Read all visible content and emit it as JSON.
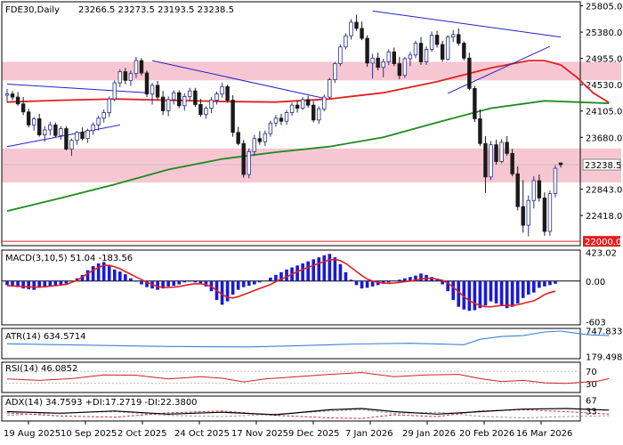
{
  "chart_data": {
    "type": "candlestick",
    "symbol_header": "FDE30,Daily",
    "ohlc_header": "23266.5 23273.5 23193.5 23238.5",
    "last_price_label": "23238.5",
    "marker_price_label": "22000.0",
    "price_axis": {
      "ylim": [
        21930,
        25870
      ],
      "ticks": [
        "25805.0",
        "25380.0",
        "24955.0",
        "24530.0",
        "24105.0",
        "23680.0",
        "22843.0",
        "22418.0"
      ]
    },
    "date_labels": [
      "19 Aug 2025",
      "10 Sep 2025",
      "2 Oct 2025",
      "24 Oct 2025",
      "17 Nov 2025",
      "9 Dec 2025",
      "7 Jan 2026",
      "29 Jan 2026",
      "20 Feb 2026",
      "16 Mar 2026"
    ],
    "resistance_zones": [
      [
        24600,
        24900
      ],
      [
        22950,
        23500
      ]
    ],
    "candles_ohlc": [
      [
        24360,
        24460,
        24240,
        24380
      ],
      [
        24380,
        24430,
        24280,
        24330
      ],
      [
        24330,
        24410,
        24190,
        24220
      ],
      [
        24220,
        24330,
        24040,
        24090
      ],
      [
        24090,
        24140,
        23840,
        23880
      ],
      [
        23880,
        24010,
        23790,
        23980
      ],
      [
        23980,
        24060,
        23690,
        23720
      ],
      [
        23720,
        23860,
        23610,
        23800
      ],
      [
        23800,
        23930,
        23710,
        23880
      ],
      [
        23880,
        23920,
        23680,
        23710
      ],
      [
        23710,
        23860,
        23640,
        23820
      ],
      [
        23820,
        23860,
        23470,
        23490
      ],
      [
        23490,
        23660,
        23380,
        23630
      ],
      [
        23630,
        23780,
        23560,
        23760
      ],
      [
        23760,
        23840,
        23630,
        23660
      ],
      [
        23660,
        23820,
        23590,
        23790
      ],
      [
        23790,
        23920,
        23720,
        23880
      ],
      [
        23880,
        24030,
        23790,
        23990
      ],
      [
        23990,
        24130,
        23920,
        24080
      ],
      [
        24080,
        24340,
        24010,
        24300
      ],
      [
        24300,
        24600,
        24260,
        24560
      ],
      [
        24560,
        24780,
        24490,
        24740
      ],
      [
        24740,
        24800,
        24540,
        24600
      ],
      [
        24600,
        24760,
        24510,
        24710
      ],
      [
        24710,
        24980,
        24640,
        24920
      ],
      [
        24920,
        24960,
        24680,
        24720
      ],
      [
        24720,
        24760,
        24330,
        24380
      ],
      [
        24380,
        24560,
        24210,
        24520
      ],
      [
        24520,
        24590,
        24290,
        24330
      ],
      [
        24330,
        24430,
        24040,
        24110
      ],
      [
        24110,
        24340,
        24020,
        24290
      ],
      [
        24290,
        24440,
        24210,
        24400
      ],
      [
        24400,
        24440,
        24150,
        24190
      ],
      [
        24190,
        24390,
        24110,
        24340
      ],
      [
        24340,
        24480,
        24280,
        24430
      ],
      [
        24430,
        24480,
        24170,
        24210
      ],
      [
        24210,
        24300,
        24010,
        24050
      ],
      [
        24050,
        24180,
        23980,
        24150
      ],
      [
        24150,
        24330,
        24070,
        24280
      ],
      [
        24280,
        24420,
        24210,
        24380
      ],
      [
        24380,
        24560,
        24320,
        24500
      ],
      [
        24500,
        24530,
        24240,
        24280
      ],
      [
        24280,
        24360,
        23690,
        23760
      ],
      [
        23760,
        23850,
        23550,
        23580
      ],
      [
        23580,
        23640,
        23030,
        23080
      ],
      [
        23080,
        23500,
        23020,
        23450
      ],
      [
        23450,
        23720,
        23380,
        23660
      ],
      [
        23660,
        23780,
        23560,
        23610
      ],
      [
        23610,
        23790,
        23540,
        23740
      ],
      [
        23740,
        23950,
        23690,
        23910
      ],
      [
        23910,
        24040,
        23850,
        23990
      ],
      [
        23990,
        24060,
        23880,
        23940
      ],
      [
        23940,
        24120,
        23880,
        24080
      ],
      [
        24080,
        24240,
        24030,
        24200
      ],
      [
        24200,
        24280,
        24080,
        24150
      ],
      [
        24150,
        24330,
        24120,
        24290
      ],
      [
        24290,
        24350,
        24160,
        24200
      ],
      [
        24200,
        24270,
        23920,
        23960
      ],
      [
        23960,
        24180,
        23900,
        24140
      ],
      [
        24140,
        24370,
        24100,
        24330
      ],
      [
        24330,
        24640,
        24300,
        24610
      ],
      [
        24610,
        24900,
        24560,
        24870
      ],
      [
        24870,
        25180,
        24830,
        25140
      ],
      [
        25140,
        25360,
        25100,
        25320
      ],
      [
        25320,
        25590,
        25260,
        25540
      ],
      [
        25540,
        25660,
        25400,
        25440
      ],
      [
        25440,
        25550,
        25250,
        25280
      ],
      [
        25280,
        25330,
        24820,
        24880
      ],
      [
        24880,
        25030,
        24630,
        24960
      ],
      [
        24960,
        25050,
        24760,
        24810
      ],
      [
        24810,
        24950,
        24650,
        24900
      ],
      [
        24900,
        25100,
        24850,
        25060
      ],
      [
        25060,
        25130,
        24830,
        24870
      ],
      [
        24870,
        24980,
        24620,
        24680
      ],
      [
        24680,
        24980,
        24640,
        24950
      ],
      [
        24950,
        25060,
        24830,
        25010
      ],
      [
        25010,
        25240,
        24960,
        25200
      ],
      [
        25200,
        25300,
        24850,
        24900
      ],
      [
        24900,
        25150,
        24850,
        25100
      ],
      [
        25100,
        25390,
        25060,
        25330
      ],
      [
        25330,
        25400,
        25130,
        25180
      ],
      [
        25180,
        25240,
        24900,
        24940
      ],
      [
        24940,
        25330,
        24920,
        25300
      ],
      [
        25300,
        25410,
        25220,
        25340
      ],
      [
        25340,
        25440,
        25160,
        25200
      ],
      [
        25200,
        25230,
        24920,
        24960
      ],
      [
        24960,
        25050,
        24440,
        24470
      ],
      [
        24470,
        24510,
        23930,
        23980
      ],
      [
        23980,
        24130,
        23540,
        23580
      ],
      [
        23580,
        23700,
        22780,
        23040
      ],
      [
        23040,
        23620,
        22990,
        23560
      ],
      [
        23560,
        23640,
        23240,
        23290
      ],
      [
        23290,
        23650,
        23260,
        23600
      ],
      [
        23600,
        23700,
        23380,
        23420
      ],
      [
        23420,
        23490,
        23050,
        23090
      ],
      [
        23090,
        23210,
        22500,
        22560
      ],
      [
        22560,
        22990,
        22140,
        22260
      ],
      [
        22260,
        22740,
        22080,
        22660
      ],
      [
        22660,
        23050,
        22530,
        22980
      ],
      [
        22980,
        23080,
        22640,
        22700
      ],
      [
        22700,
        22790,
        22090,
        22160
      ],
      [
        22160,
        22820,
        22090,
        22770
      ],
      [
        22770,
        23230,
        22710,
        23180
      ],
      [
        23266.5,
        23273.5,
        23193.5,
        23238.5
      ]
    ],
    "ma_red": [
      [
        0,
        24250
      ],
      [
        10,
        24280
      ],
      [
        20,
        24300
      ],
      [
        30,
        24280
      ],
      [
        40,
        24260
      ],
      [
        50,
        24250
      ],
      [
        60,
        24300
      ],
      [
        70,
        24400
      ],
      [
        80,
        24580
      ],
      [
        90,
        24800
      ],
      [
        97,
        24920
      ],
      [
        100,
        24920
      ],
      [
        103,
        24850
      ],
      [
        106,
        24650
      ],
      [
        109,
        24400
      ],
      [
        112,
        24240
      ]
    ],
    "ma_green": [
      [
        0,
        22490
      ],
      [
        10,
        22700
      ],
      [
        20,
        22920
      ],
      [
        30,
        23160
      ],
      [
        40,
        23330
      ],
      [
        50,
        23440
      ],
      [
        60,
        23530
      ],
      [
        70,
        23680
      ],
      [
        80,
        23920
      ],
      [
        90,
        24150
      ],
      [
        100,
        24270
      ],
      [
        112,
        24230
      ]
    ],
    "trendlines": [
      [
        [
          0,
          24540
        ],
        [
          26,
          24400
        ]
      ],
      [
        [
          0,
          23530
        ],
        [
          21,
          23880
        ]
      ],
      [
        [
          27,
          24920
        ],
        [
          59,
          24310
        ]
      ],
      [
        [
          68,
          25720
        ],
        [
          103,
          25300
        ]
      ],
      [
        [
          82,
          24390
        ],
        [
          101,
          25150
        ]
      ]
    ],
    "macd": {
      "label": "MACD(3,10,5) 51.04 -183.56",
      "ticks": [
        "423.02",
        "0.00",
        "-603"
      ],
      "ylim": [
        -620,
        430
      ],
      "histogram": [
        -60,
        -80,
        -90,
        -110,
        -120,
        -130,
        -100,
        -95,
        -80,
        -75,
        -60,
        -40,
        0,
        40,
        90,
        160,
        220,
        260,
        280,
        230,
        170,
        140,
        100,
        40,
        -10,
        -50,
        -90,
        -110,
        -130,
        -110,
        -80,
        -70,
        -50,
        -20,
        -10,
        -20,
        -40,
        -80,
        -150,
        -280,
        -350,
        -300,
        -200,
        -130,
        -90,
        -70,
        -50,
        -20,
        0,
        50,
        90,
        130,
        170,
        200,
        230,
        260,
        290,
        320,
        350,
        380,
        400,
        350,
        250,
        130,
        20,
        -60,
        -110,
        -100,
        -80,
        -60,
        -40,
        -20,
        0,
        20,
        40,
        60,
        80,
        110,
        90,
        60,
        20,
        -50,
        -150,
        -280,
        -380,
        -420,
        -440,
        -430,
        -400,
        -360,
        -300,
        -330,
        -370,
        -400,
        -380,
        -330,
        -250,
        -200,
        -170,
        -100,
        -80,
        -60,
        -40
      ],
      "signal": [
        -70,
        -70,
        -75,
        -80,
        -85,
        -90,
        -88,
        -84,
        -75,
        -68,
        -60,
        -50,
        -20,
        10,
        60,
        110,
        160,
        200,
        230,
        230,
        210,
        180,
        140,
        100,
        60,
        20,
        -20,
        -50,
        -80,
        -95,
        -95,
        -90,
        -80,
        -65,
        -50,
        -40,
        -40,
        -55,
        -80,
        -140,
        -200,
        -240,
        -250,
        -230,
        -200,
        -170,
        -140,
        -110,
        -80,
        -50,
        -10,
        30,
        60,
        100,
        140,
        170,
        200,
        230,
        260,
        290,
        310,
        320,
        300,
        260,
        200,
        140,
        80,
        30,
        0,
        -20,
        -30,
        -35,
        -30,
        -20,
        -10,
        0,
        15,
        30,
        40,
        40,
        30,
        10,
        -30,
        -90,
        -160,
        -230,
        -290,
        -330,
        -360,
        -380,
        -380,
        -370,
        -360,
        -360,
        -360,
        -350,
        -330,
        -310,
        -290,
        -250,
        -200,
        -170,
        -150
      ]
    },
    "atr": {
      "label": "ATR(14) 634.5714",
      "ticks": [
        "747.8339",
        "179.4985"
      ],
      "ylim": [
        170,
        760
      ],
      "points": [
        [
          0,
          460
        ],
        [
          15,
          430
        ],
        [
          30,
          400
        ],
        [
          45,
          390
        ],
        [
          55,
          420
        ],
        [
          65,
          455
        ],
        [
          75,
          470
        ],
        [
          85,
          440
        ],
        [
          88,
          560
        ],
        [
          92,
          620
        ],
        [
          96,
          640
        ],
        [
          100,
          720
        ],
        [
          103,
          740
        ],
        [
          108,
          660
        ],
        [
          112,
          640
        ]
      ]
    },
    "rsi": {
      "label": "RSI(14) 46.0852",
      "ticks": [
        "70",
        "30"
      ],
      "ylim": [
        0,
        100
      ],
      "points": [
        [
          0,
          45
        ],
        [
          6,
          40
        ],
        [
          12,
          46
        ],
        [
          18,
          58
        ],
        [
          24,
          57
        ],
        [
          30,
          45
        ],
        [
          36,
          52
        ],
        [
          40,
          47
        ],
        [
          44,
          35
        ],
        [
          48,
          45
        ],
        [
          54,
          52
        ],
        [
          60,
          60
        ],
        [
          66,
          66
        ],
        [
          72,
          52
        ],
        [
          78,
          58
        ],
        [
          84,
          60
        ],
        [
          88,
          46
        ],
        [
          92,
          36
        ],
        [
          96,
          40
        ],
        [
          100,
          32
        ],
        [
          104,
          30
        ],
        [
          108,
          35
        ],
        [
          110,
          38
        ],
        [
          112,
          46
        ]
      ]
    },
    "adx": {
      "label": "ADX(14) 34.7593 +DI:17.2719 -DI:22.3800",
      "ticks": [
        "67",
        "33"
      ],
      "ylim": [
        0,
        80
      ],
      "adx": [
        [
          0,
          30
        ],
        [
          10,
          25
        ],
        [
          20,
          32
        ],
        [
          30,
          22
        ],
        [
          40,
          28
        ],
        [
          50,
          20
        ],
        [
          60,
          36
        ],
        [
          66,
          40
        ],
        [
          72,
          30
        ],
        [
          80,
          22
        ],
        [
          88,
          30
        ],
        [
          96,
          38
        ],
        [
          104,
          40
        ],
        [
          112,
          35
        ]
      ],
      "plus_di": [
        [
          0,
          18
        ],
        [
          10,
          26
        ],
        [
          20,
          30
        ],
        [
          30,
          18
        ],
        [
          40,
          14
        ],
        [
          50,
          22
        ],
        [
          60,
          32
        ],
        [
          66,
          36
        ],
        [
          72,
          24
        ],
        [
          80,
          28
        ],
        [
          88,
          15
        ],
        [
          96,
          10
        ],
        [
          104,
          14
        ],
        [
          112,
          17
        ]
      ],
      "minus_di": [
        [
          0,
          26
        ],
        [
          10,
          16
        ],
        [
          20,
          12
        ],
        [
          30,
          26
        ],
        [
          40,
          32
        ],
        [
          50,
          18
        ],
        [
          60,
          10
        ],
        [
          66,
          8
        ],
        [
          72,
          20
        ],
        [
          80,
          14
        ],
        [
          88,
          32
        ],
        [
          96,
          36
        ],
        [
          104,
          30
        ],
        [
          112,
          22
        ]
      ]
    },
    "colors": {
      "up": "#2b2f86",
      "down": "#1a1a1a",
      "ma_red": "#e02020",
      "ma_green": "#1e8a1e",
      "zone": "#f6c7d2",
      "trendline": "#2222cc",
      "macd_hist": "#1a1ad6",
      "macd_signal": "#e02020",
      "atr": "#3b83d6",
      "rsi": "#cc2222",
      "adx": "#000000",
      "plus_di": "#999999",
      "minus_di": "#cc3333"
    }
  }
}
